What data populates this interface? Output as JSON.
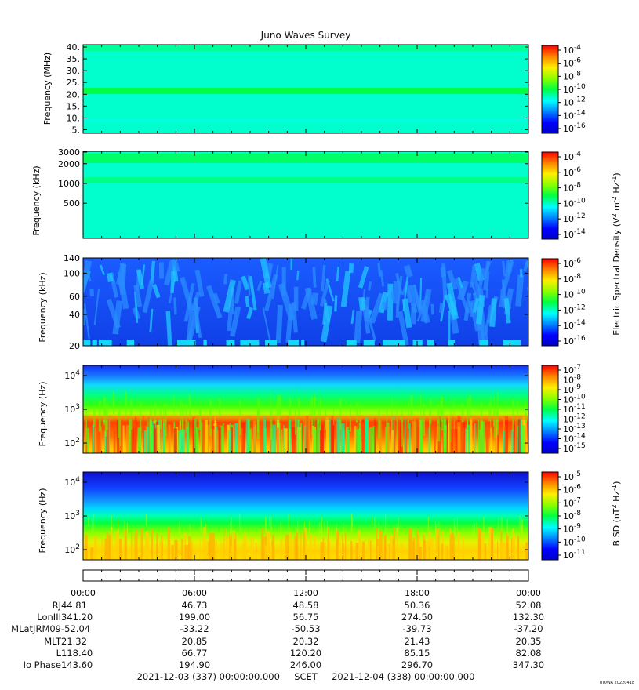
{
  "title": "Juno Waves Survey",
  "chart_data": [
    {
      "type": "heatmap",
      "panel": 1,
      "ylabel": "Frequency (MHz)",
      "yticks": [
        "5.",
        "10.",
        "15.",
        "20.",
        "25.",
        "30.",
        "35.",
        "40."
      ],
      "ylim": [
        3.5,
        41
      ],
      "cbar_ticks": [
        "10^-4",
        "10^-6",
        "10^-8",
        "10^-10",
        "10^-12",
        "10^-14",
        "10^-16"
      ],
      "description_values": {
        "background": "10^-13",
        "band_MHz": 21,
        "band_level": "10^-11"
      }
    },
    {
      "type": "heatmap",
      "panel": 2,
      "ylabel": "Frequency (kHz)",
      "yticks": [
        "500",
        "1000",
        "2000",
        "3000"
      ],
      "ylim": [
        140,
        3000
      ],
      "cbar_ticks": [
        "10^-4",
        "10^-6",
        "10^-8",
        "10^-10",
        "10^-12",
        "10^-14"
      ],
      "cbar_label": "Electric Spectral Density (V^2 m^-2 Hz^-1)"
    },
    {
      "type": "heatmap",
      "panel": 3,
      "ylabel": "Frequency (kHz)",
      "yticks": [
        "20",
        "40",
        "60",
        "100",
        "140"
      ],
      "ylim": [
        20,
        140
      ],
      "cbar_ticks": [
        "10^-6",
        "10^-8",
        "10^-10",
        "10^-12",
        "10^-14",
        "10^-16"
      ]
    },
    {
      "type": "heatmap",
      "panel": 4,
      "ylabel": "Frequency (Hz)",
      "yticks": [
        "10^2",
        "10^3",
        "10^4"
      ],
      "ylim": [
        50,
        20000
      ],
      "cbar_ticks": [
        "10^-7",
        "10^-8",
        "10^-9",
        "10^-10",
        "10^-11",
        "10^-12",
        "10^-13",
        "10^-14",
        "10^-15"
      ]
    },
    {
      "type": "heatmap",
      "panel": 5,
      "ylabel": "Frequency (Hz)",
      "yticks": [
        "10^2",
        "10^3",
        "10^4"
      ],
      "ylim": [
        50,
        20000
      ],
      "cbar_ticks": [
        "10^-5",
        "10^-6",
        "10^-7",
        "10^-8",
        "10^-9",
        "10^-10",
        "10^-11"
      ],
      "cbar_label": "B SD (nT^2 Hz^-1)"
    }
  ],
  "time_axis": [
    "00:00",
    "06:00",
    "12:00",
    "18:00",
    "00:00"
  ],
  "ephemeris": [
    {
      "label": "RJ",
      "values": [
        "44.81",
        "46.73",
        "48.58",
        "50.36",
        "52.08"
      ]
    },
    {
      "label": "LonIII",
      "values": [
        "341.20",
        "199.00",
        "56.75",
        "274.50",
        "132.30"
      ]
    },
    {
      "label": "MLatJRM09",
      "values": [
        "-52.04",
        "-33.22",
        "-50.53",
        "-39.73",
        "-37.20"
      ]
    },
    {
      "label": "MLT",
      "values": [
        "21.32",
        "20.85",
        "20.32",
        "21.43",
        "20.35"
      ]
    },
    {
      "label": "L",
      "values": [
        "118.40",
        "66.77",
        "120.20",
        "85.15",
        "82.08"
      ]
    },
    {
      "label": "Io Phase",
      "values": [
        "143.60",
        "194.90",
        "246.00",
        "296.70",
        "347.30"
      ]
    }
  ],
  "footer": {
    "start": "2021-12-03 (337) 00:00:00.000",
    "mid": "SCET",
    "end": "2021-12-04 (338) 00:00:00.000"
  },
  "stamp": "UIOWA 20220418",
  "colors": {
    "bg": "#00ffdd",
    "low": "#0000cc",
    "high": "#ff0000"
  }
}
